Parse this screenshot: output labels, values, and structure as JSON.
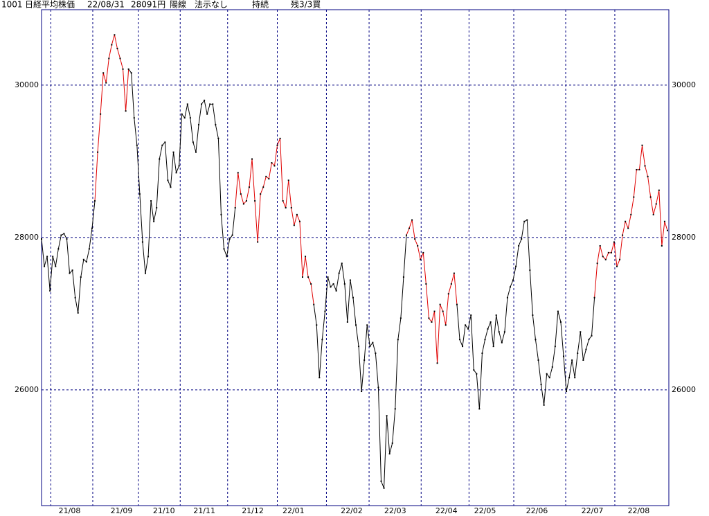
{
  "header": {
    "code": "1001",
    "name": "日経平均株価",
    "date": "22/08/31",
    "price": "28091円",
    "candle": "陽線",
    "display": "法示なし",
    "status": "持続",
    "remaining": "残3/3買"
  },
  "chart_data": {
    "type": "line",
    "values": [
      27980,
      27620,
      27750,
      27300,
      27750,
      27620,
      27850,
      28030,
      28050,
      27980,
      27530,
      27570,
      27210,
      27010,
      27480,
      27710,
      27680,
      27850,
      28120,
      28480,
      29120,
      29620,
      30160,
      30030,
      30350,
      30530,
      30660,
      30480,
      30350,
      30210,
      29660,
      30210,
      30160,
      29570,
      29210,
      28570,
      27940,
      27530,
      27750,
      28480,
      28210,
      28390,
      29030,
      29210,
      29250,
      28750,
      28660,
      29120,
      28850,
      28940,
      29620,
      29570,
      29750,
      29570,
      29250,
      29120,
      29480,
      29750,
      29800,
      29620,
      29750,
      29750,
      29480,
      29300,
      28300,
      27850,
      27750,
      27980,
      28030,
      28390,
      28850,
      28570,
      28440,
      28480,
      28660,
      29030,
      28480,
      27940,
      28570,
      28660,
      28800,
      28770,
      28980,
      28940,
      29210,
      29300,
      28480,
      28390,
      28750,
      28390,
      28160,
      28300,
      28210,
      27480,
      27750,
      27480,
      27390,
      27120,
      26850,
      26160,
      26660,
      27030,
      27480,
      27350,
      27390,
      27300,
      27530,
      27660,
      27390,
      26890,
      27440,
      27210,
      26850,
      26570,
      25980,
      26390,
      26850,
      26570,
      26620,
      26480,
      26030,
      24800,
      24710,
      25660,
      25160,
      25300,
      25750,
      26660,
      26940,
      27480,
      28030,
      28120,
      28230,
      27980,
      27890,
      27710,
      27800,
      27390,
      26940,
      26890,
      27030,
      26350,
      27120,
      27030,
      26850,
      27260,
      27390,
      27530,
      27120,
      26660,
      26570,
      26850,
      26800,
      26980,
      26260,
      26210,
      25750,
      26480,
      26660,
      26800,
      26890,
      26570,
      26980,
      26760,
      26620,
      26760,
      27210,
      27350,
      27440,
      27620,
      27890,
      27980,
      28210,
      28230,
      27570,
      26980,
      26660,
      26390,
      26070,
      25800,
      26210,
      26160,
      26300,
      26570,
      27030,
      26890,
      26440,
      25980,
      26160,
      26390,
      26160,
      26480,
      26760,
      26390,
      26530,
      26660,
      26710,
      27210,
      27660,
      27890,
      27750,
      27710,
      27800,
      27800,
      27940,
      27620,
      27710,
      28030,
      28210,
      28120,
      28300,
      28530,
      28890,
      28890,
      29210,
      28940,
      28800,
      28530,
      28300,
      28440,
      28620,
      27890,
      28210,
      28091
    ],
    "color": "#000000",
    "highlight_color": "#e00000",
    "highlight_ranges": [
      [
        19,
        31
      ],
      [
        69,
        97
      ],
      [
        130,
        148
      ],
      [
        197,
        223
      ]
    ],
    "xlim": [
      0,
      223.5
    ],
    "ylim": [
      24480,
      30990
    ],
    "yticks": [
      26000,
      28000,
      30000
    ],
    "month_lines": [
      3.3,
      18.25,
      34.5,
      49.4,
      66.3,
      84,
      101.5,
      116.7,
      135.25,
      152.3,
      168.25,
      186.75,
      204.25
    ],
    "xticks": [
      {
        "value": 10,
        "label": "21/08"
      },
      {
        "value": 28.5,
        "label": "21/09"
      },
      {
        "value": 43.6,
        "label": "21/10"
      },
      {
        "value": 58,
        "label": "21/11"
      },
      {
        "value": 75.25,
        "label": "21/12"
      },
      {
        "value": 89.75,
        "label": "22/01"
      },
      {
        "value": 110.5,
        "label": "22/02"
      },
      {
        "value": 126,
        "label": "22/03"
      },
      {
        "value": 144.25,
        "label": "22/04"
      },
      {
        "value": 158,
        "label": "22/05"
      },
      {
        "value": 176.5,
        "label": "22/06"
      },
      {
        "value": 196.25,
        "label": "22/07"
      },
      {
        "value": 212.75,
        "label": "22/08"
      }
    ],
    "grid": true
  }
}
